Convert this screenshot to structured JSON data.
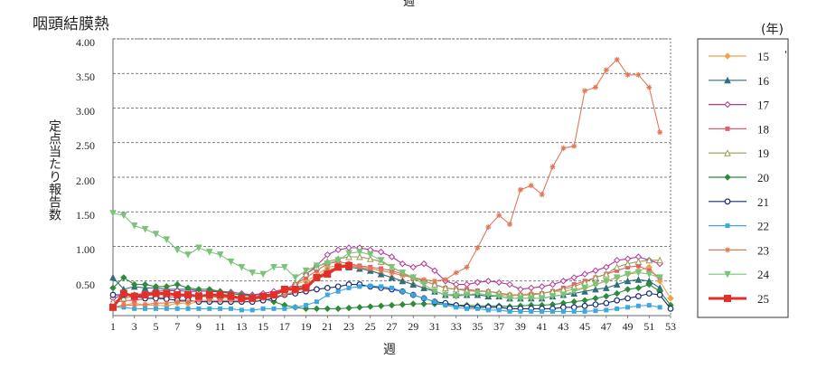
{
  "chart_data": {
    "type": "line",
    "title": "咽頭結膜熱",
    "top_label": "週",
    "xlabel": "週",
    "ylabel": "定点当たり報告数",
    "unit_label": "(年)",
    "ylim": [
      0,
      4.0
    ],
    "xlim": [
      1,
      53
    ],
    "yticks": [
      "4.00",
      "3.50",
      "3.00",
      "2.50",
      "2.00",
      "1.50",
      "1.00",
      "0.50"
    ],
    "xticks": [
      "1",
      "3",
      "5",
      "7",
      "9",
      "11",
      "13",
      "15",
      "17",
      "19",
      "21",
      "23",
      "25",
      "27",
      "29",
      "31",
      "33",
      "35",
      "37",
      "39",
      "41",
      "43",
      "45",
      "47",
      "49",
      "51",
      "53"
    ],
    "grid": "dashed-horizontal",
    "legend_position": "right",
    "stray_mark": "'",
    "series": [
      {
        "name": "15",
        "color": "#f2a34a",
        "marker": "diamond",
        "values": [
          0.12,
          0.15,
          0.18,
          0.15,
          0.15,
          0.14,
          0.18,
          0.17,
          0.2,
          0.2,
          0.2,
          0.22,
          0.22,
          0.25,
          0.25,
          0.3,
          0.35,
          0.45,
          0.5,
          0.58,
          0.7,
          0.72,
          0.75,
          0.7,
          0.65,
          0.6,
          0.55,
          0.5,
          0.45,
          0.4,
          0.35,
          0.3,
          0.28,
          0.3,
          0.3,
          0.28,
          0.3,
          0.28,
          0.3,
          0.32,
          0.32,
          0.35,
          0.35,
          0.38,
          0.4,
          0.45,
          0.5,
          0.55,
          0.6,
          0.65,
          0.7,
          0.5,
          0.25
        ]
      },
      {
        "name": "16",
        "color": "#2f6e7f",
        "marker": "triangle",
        "values": [
          0.55,
          0.38,
          0.42,
          0.4,
          0.4,
          0.38,
          0.38,
          0.38,
          0.36,
          0.35,
          0.34,
          0.32,
          0.3,
          0.3,
          0.3,
          0.32,
          0.35,
          0.4,
          0.45,
          0.55,
          0.65,
          0.7,
          0.7,
          0.68,
          0.65,
          0.6,
          0.55,
          0.5,
          0.45,
          0.4,
          0.35,
          0.3,
          0.3,
          0.3,
          0.3,
          0.28,
          0.28,
          0.25,
          0.25,
          0.25,
          0.25,
          0.28,
          0.3,
          0.32,
          0.35,
          0.38,
          0.4,
          0.45,
          0.5,
          0.52,
          0.5,
          0.4,
          null
        ]
      },
      {
        "name": "17",
        "color": "#b5379b",
        "marker": "diamond-open",
        "values": [
          0.25,
          0.3,
          0.3,
          0.32,
          0.35,
          0.36,
          0.36,
          0.35,
          0.35,
          0.36,
          0.35,
          0.34,
          0.32,
          0.3,
          0.32,
          0.35,
          0.38,
          0.45,
          0.6,
          0.72,
          0.88,
          0.95,
          0.98,
          0.98,
          0.95,
          0.92,
          0.85,
          0.75,
          0.7,
          0.75,
          0.65,
          0.5,
          0.45,
          0.45,
          0.48,
          0.5,
          0.48,
          0.45,
          0.38,
          0.4,
          0.42,
          0.45,
          0.5,
          0.55,
          0.6,
          0.65,
          0.7,
          0.8,
          0.82,
          0.85,
          0.8,
          0.75,
          null
        ]
      },
      {
        "name": "18",
        "color": "#e0616d",
        "marker": "square",
        "values": [
          0.18,
          0.22,
          0.22,
          0.24,
          0.26,
          0.26,
          0.28,
          0.28,
          0.28,
          0.28,
          0.26,
          0.26,
          0.25,
          0.25,
          0.25,
          0.3,
          0.35,
          0.45,
          0.55,
          0.65,
          0.75,
          0.78,
          0.75,
          0.72,
          0.7,
          0.68,
          0.65,
          0.6,
          0.55,
          0.5,
          0.45,
          0.4,
          0.38,
          0.38,
          0.36,
          0.35,
          0.32,
          0.3,
          0.3,
          0.3,
          0.32,
          0.35,
          0.4,
          0.45,
          0.5,
          0.55,
          0.6,
          0.65,
          0.7,
          0.72,
          0.65,
          0.55,
          null
        ]
      },
      {
        "name": "19",
        "color": "#9a9a55",
        "marker": "triangle-open",
        "values": [
          0.2,
          0.25,
          0.28,
          0.3,
          0.3,
          0.3,
          0.3,
          0.3,
          0.28,
          0.28,
          0.28,
          0.26,
          0.25,
          0.25,
          0.28,
          0.3,
          0.35,
          0.45,
          0.6,
          0.7,
          0.78,
          0.82,
          0.85,
          0.85,
          0.82,
          0.78,
          0.7,
          0.62,
          0.55,
          0.5,
          0.45,
          0.4,
          0.38,
          0.36,
          0.35,
          0.35,
          0.33,
          0.3,
          0.3,
          0.3,
          0.32,
          0.35,
          0.38,
          0.42,
          0.48,
          0.55,
          0.6,
          0.7,
          0.75,
          0.78,
          0.8,
          0.8,
          null
        ]
      },
      {
        "name": "20",
        "color": "#2e8b3a",
        "marker": "diamond",
        "values": [
          0.4,
          0.55,
          0.45,
          0.45,
          0.42,
          0.42,
          0.45,
          0.4,
          0.38,
          0.38,
          0.35,
          0.32,
          0.3,
          0.28,
          0.25,
          0.2,
          0.15,
          0.12,
          0.1,
          0.1,
          0.1,
          0.1,
          0.11,
          0.12,
          0.13,
          0.14,
          0.15,
          0.16,
          0.17,
          0.17,
          0.17,
          0.16,
          0.15,
          0.15,
          0.14,
          0.14,
          0.14,
          0.13,
          0.14,
          0.15,
          0.15,
          0.16,
          0.18,
          0.2,
          0.22,
          0.25,
          0.28,
          0.32,
          0.38,
          0.4,
          0.45,
          0.35,
          0.15
        ]
      },
      {
        "name": "21",
        "color": "#1a2a7a",
        "marker": "circle-open",
        "values": [
          0.3,
          0.3,
          0.28,
          0.25,
          0.25,
          0.24,
          0.22,
          0.22,
          0.2,
          0.2,
          0.2,
          0.2,
          0.2,
          0.2,
          0.22,
          0.25,
          0.3,
          0.32,
          0.35,
          0.38,
          0.4,
          0.42,
          0.45,
          0.45,
          0.42,
          0.4,
          0.38,
          0.35,
          0.3,
          0.25,
          0.2,
          0.18,
          0.15,
          0.13,
          0.12,
          0.12,
          0.12,
          0.1,
          0.1,
          0.1,
          0.1,
          0.1,
          0.12,
          0.12,
          0.14,
          0.16,
          0.18,
          0.22,
          0.25,
          0.28,
          0.32,
          0.3,
          0.1
        ]
      },
      {
        "name": "22",
        "color": "#3fa7e0",
        "marker": "square",
        "values": [
          0.12,
          0.12,
          0.1,
          0.1,
          0.1,
          0.1,
          0.1,
          0.1,
          0.1,
          0.1,
          0.1,
          0.1,
          0.08,
          0.08,
          0.1,
          0.1,
          0.1,
          0.12,
          0.15,
          0.2,
          0.3,
          0.35,
          0.4,
          0.42,
          0.43,
          0.42,
          0.4,
          0.35,
          0.3,
          0.25,
          0.2,
          0.15,
          0.12,
          0.1,
          0.1,
          0.08,
          0.08,
          0.06,
          0.06,
          0.06,
          0.06,
          0.06,
          0.06,
          0.06,
          0.06,
          0.07,
          0.08,
          0.1,
          0.12,
          0.14,
          0.15,
          0.12,
          null
        ]
      },
      {
        "name": "23",
        "color": "#e07a58",
        "marker": "asterisk",
        "values": [
          0.12,
          0.15,
          0.15,
          0.16,
          0.18,
          0.18,
          0.2,
          0.2,
          0.22,
          0.22,
          0.22,
          0.22,
          0.22,
          0.24,
          0.25,
          0.28,
          0.3,
          0.35,
          0.45,
          0.55,
          0.65,
          0.7,
          0.72,
          0.7,
          0.68,
          0.65,
          0.62,
          0.58,
          0.55,
          0.52,
          0.5,
          0.52,
          0.62,
          0.7,
          0.98,
          1.28,
          1.45,
          1.32,
          1.82,
          1.88,
          1.75,
          2.15,
          2.42,
          2.45,
          3.25,
          3.3,
          3.55,
          3.7,
          3.48,
          3.48,
          3.3,
          2.65,
          null
        ]
      },
      {
        "name": "24",
        "color": "#7ac47a",
        "marker": "triangle-down",
        "values": [
          1.48,
          1.45,
          1.3,
          1.25,
          1.18,
          1.1,
          0.95,
          0.88,
          0.98,
          0.92,
          0.88,
          0.78,
          0.7,
          0.62,
          0.6,
          0.7,
          0.7,
          0.55,
          0.65,
          0.72,
          0.75,
          0.8,
          0.9,
          0.92,
          0.88,
          0.8,
          0.7,
          0.62,
          0.55,
          0.45,
          0.35,
          0.3,
          0.28,
          0.3,
          0.32,
          0.3,
          0.28,
          0.25,
          0.25,
          0.25,
          0.25,
          0.28,
          0.3,
          0.35,
          0.4,
          0.45,
          0.5,
          0.55,
          0.6,
          0.62,
          0.6,
          0.55,
          null
        ]
      },
      {
        "name": "25",
        "color": "#e0302a",
        "marker": "square-bold",
        "values": [
          0.12,
          0.32,
          0.28,
          0.3,
          0.32,
          0.32,
          0.3,
          0.3,
          0.28,
          0.3,
          0.3,
          0.28,
          0.25,
          0.25,
          0.28,
          0.3,
          0.38,
          0.38,
          0.4,
          0.55,
          0.6,
          0.7,
          0.72,
          null,
          null,
          null,
          null,
          null,
          null,
          null,
          null,
          null,
          null,
          null,
          null,
          null,
          null,
          null,
          null,
          null,
          null,
          null,
          null,
          null,
          null,
          null,
          null,
          null,
          null,
          null,
          null,
          null,
          null
        ]
      }
    ]
  }
}
